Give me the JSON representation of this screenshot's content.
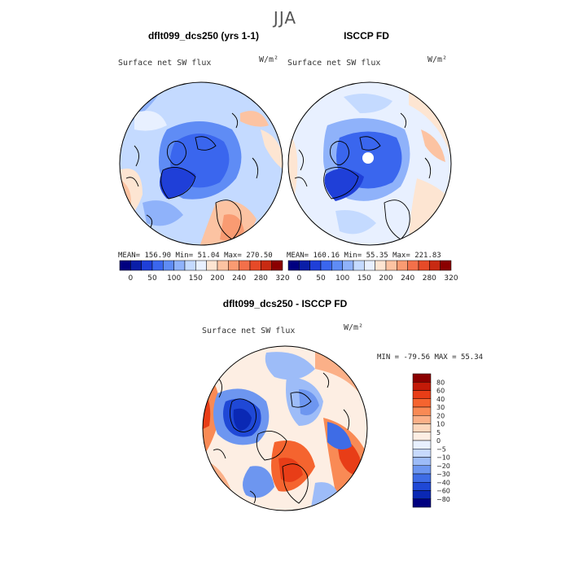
{
  "season": "JJA",
  "panels": {
    "model": {
      "title": "dflt099_dcs250 (yrs 1-1)",
      "field": "Surface net SW flux",
      "units": "W/m²",
      "mean_label": "MEAN=",
      "mean": "156.90",
      "min_label": "Min=",
      "min": "51.04",
      "max_label": "Max=",
      "max": "270.50"
    },
    "obs": {
      "title": "ISCCP FD",
      "field": "Surface net SW flux",
      "units": "W/m²",
      "mean_label": "MEAN=",
      "mean": "160.16",
      "min_label": "Min=",
      "min": "55.35",
      "max_label": "Max=",
      "max": "221.83"
    },
    "diff": {
      "title": "dflt099_dcs250 - ISCCP FD",
      "field": "Surface net SW flux",
      "units": "W/m²",
      "minmax": "MIN = -79.56 MAX =  55.34"
    }
  },
  "colorbars": {
    "abs_ticks": [
      "0",
      "50",
      "100",
      "150",
      "200",
      "240",
      "280",
      "320"
    ],
    "abs_colors": [
      "#000080",
      "#0a1ea8",
      "#1f3fd8",
      "#3a66ee",
      "#5f8cf5",
      "#8fb2fa",
      "#c4daff",
      "#e8f0ff",
      "#fde5d2",
      "#fcc3a2",
      "#f99b72",
      "#f3704a",
      "#e64a28",
      "#c82a12",
      "#8b0000"
    ],
    "diff_ticks": [
      "80",
      "60",
      "40",
      "30",
      "20",
      "10",
      "5",
      "0",
      "−5",
      "−10",
      "−20",
      "−30",
      "−40",
      "−60",
      "−80"
    ],
    "diff_colors": [
      "#8b0000",
      "#c31a08",
      "#e83d17",
      "#f5642f",
      "#f98a55",
      "#fbb088",
      "#fdd7bd",
      "#fdeee3",
      "#e8f0fe",
      "#c7dafd",
      "#9dbcf8",
      "#6d96f0",
      "#3e6ce6",
      "#1f48d6",
      "#0a28b4",
      "#000080"
    ]
  }
}
